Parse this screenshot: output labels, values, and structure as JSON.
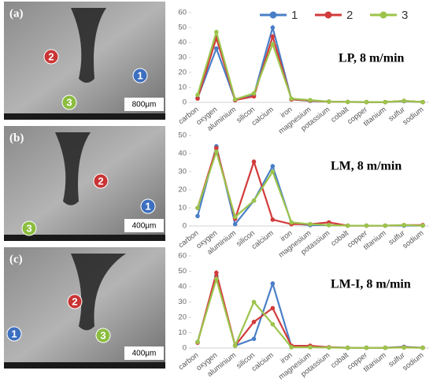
{
  "panels": [
    {
      "label": "(a)",
      "scale": "800μm",
      "markers": [
        "1",
        "2",
        "3"
      ]
    },
    {
      "label": "(b)",
      "scale": "400μm",
      "markers": [
        "1",
        "2",
        "3"
      ]
    },
    {
      "label": "(c)",
      "scale": "400μm",
      "markers": [
        "1",
        "2",
        "3"
      ]
    }
  ],
  "chart_data": [
    {
      "type": "line",
      "annotation": "LP, 8 m/min",
      "legend": "top-right",
      "grid": false,
      "categories": [
        "carbon",
        "oxygen",
        "aluminium",
        "silicon",
        "calcium",
        "iron",
        "magnesium",
        "potassium",
        "cobalt",
        "copper",
        "titanium",
        "sulfur",
        "sodium"
      ],
      "ylim": [
        0,
        60
      ],
      "yticks": [
        0,
        10,
        20,
        30,
        40,
        50,
        60
      ],
      "series": [
        {
          "name": "1",
          "color": "#4a7fc7",
          "values": [
            3,
            36,
            1.5,
            5,
            50,
            2,
            1,
            0.5,
            0.3,
            0.2,
            0.2,
            0.8,
            0.2
          ]
        },
        {
          "name": "2",
          "color": "#d23b3b",
          "values": [
            2.5,
            43,
            1.5,
            4,
            44,
            2,
            1.2,
            0.5,
            0.3,
            0.2,
            0.2,
            1,
            0.2
          ]
        },
        {
          "name": "3",
          "color": "#9cc44b",
          "values": [
            5,
            47,
            2,
            6,
            39,
            2.5,
            1.5,
            0.5,
            0.3,
            0.2,
            0.2,
            1,
            0.2
          ]
        }
      ]
    },
    {
      "type": "line",
      "annotation": "LM, 8 m/min",
      "grid": false,
      "categories": [
        "carbon",
        "oxygen",
        "aluminium",
        "silicon",
        "calcium",
        "iron",
        "magnesium",
        "potassium",
        "cobalt",
        "copper",
        "titanium",
        "sulfur",
        "sodium"
      ],
      "ylim": [
        0,
        50
      ],
      "yticks": [
        0,
        10,
        20,
        30,
        40,
        50
      ],
      "series": [
        {
          "name": "1",
          "color": "#4a7fc7",
          "values": [
            5.5,
            44,
            1,
            14,
            33,
            1.5,
            0.5,
            0.5,
            0.2,
            0.2,
            0.2,
            0.2,
            0.2
          ]
        },
        {
          "name": "2",
          "color": "#d23b3b",
          "values": [
            10,
            43,
            4,
            35.5,
            3.5,
            1,
            1,
            2,
            0.2,
            0.2,
            0.2,
            0.5,
            0.5
          ]
        },
        {
          "name": "3",
          "color": "#9cc44b",
          "values": [
            10,
            41,
            5,
            14,
            30,
            2,
            1,
            0.5,
            0.2,
            0.2,
            0.2,
            0.5,
            0.2
          ]
        }
      ]
    },
    {
      "type": "line",
      "annotation": "LM-I, 8 m/min",
      "grid": false,
      "categories": [
        "carbon",
        "oxygen",
        "aluminium",
        "silicon",
        "calcium",
        "iron",
        "magnesium",
        "potassium",
        "cobalt",
        "copper",
        "titanium",
        "sulfur",
        "sodium"
      ],
      "ylim": [
        0,
        60
      ],
      "yticks": [
        0,
        10,
        20,
        30,
        40,
        50,
        60
      ],
      "series": [
        {
          "name": "1",
          "color": "#4a7fc7",
          "values": [
            4,
            47,
            1.5,
            6,
            42,
            1,
            1,
            0.5,
            0.2,
            0.2,
            0.2,
            0.8,
            0.2
          ]
        },
        {
          "name": "2",
          "color": "#d23b3b",
          "values": [
            3.5,
            49,
            1.5,
            17,
            26,
            1.5,
            1.5,
            0.5,
            0.2,
            0.2,
            0.2,
            0.5,
            0.2
          ]
        },
        {
          "name": "3",
          "color": "#9cc44b",
          "values": [
            4,
            45,
            1.5,
            30,
            15.5,
            0.5,
            0.5,
            0.3,
            0.2,
            0.2,
            0.2,
            0.3,
            0.2
          ]
        }
      ]
    }
  ]
}
